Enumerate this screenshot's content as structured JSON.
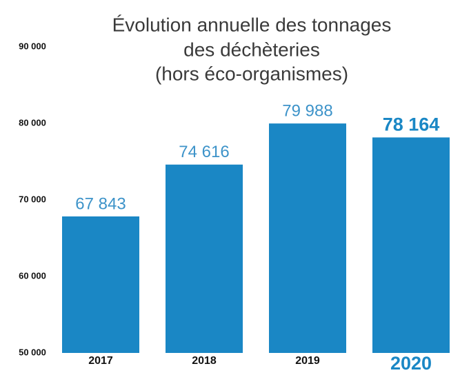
{
  "chart_data": {
    "type": "bar",
    "title": [
      "Évolution annuelle des tonnages",
      "des déchèteries",
      "(hors éco-organismes)"
    ],
    "categories": [
      "2017",
      "2018",
      "2019",
      "2020"
    ],
    "values": [
      67843,
      74616,
      79988,
      78164
    ],
    "value_labels": [
      "67 843",
      "74 616",
      "79 988",
      "78 164"
    ],
    "color": "#1a87c5",
    "ylim": [
      50000,
      90000
    ],
    "yticks": [
      {
        "value": 50000,
        "label": "50 000"
      },
      {
        "value": 60000,
        "label": "60 000"
      },
      {
        "value": 70000,
        "label": "70 000"
      },
      {
        "value": 80000,
        "label": "80 000"
      },
      {
        "value": 90000,
        "label": "90 000"
      }
    ],
    "grid": false
  }
}
